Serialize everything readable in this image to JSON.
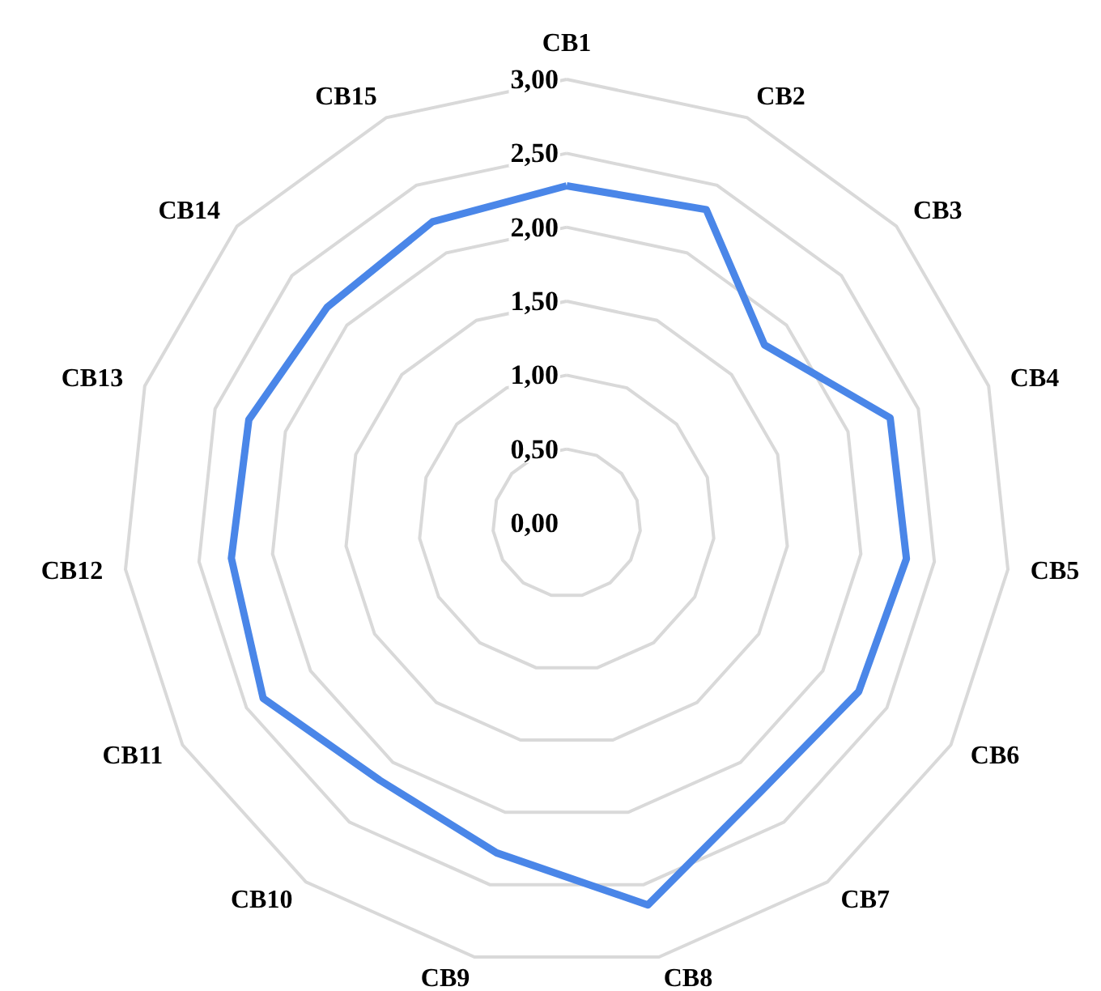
{
  "chart_data": {
    "type": "radar",
    "categories": [
      "CB1",
      "CB2",
      "CB3",
      "CB4",
      "CB5",
      "CB6",
      "CB7",
      "CB8",
      "CB9",
      "CB10",
      "CB11",
      "CB12",
      "CB13",
      "CB14",
      "CB15"
    ],
    "series": [
      {
        "color": "#4a86e8",
        "values": [
          2.28,
          2.32,
          1.8,
          2.3,
          2.31,
          2.28,
          2.24,
          2.64,
          2.28,
          2.15,
          2.37,
          2.28,
          2.26,
          2.18,
          2.23
        ]
      }
    ],
    "ylim": [
      0,
      3
    ],
    "yticks": [
      {
        "value": 0,
        "label": "0,00"
      },
      {
        "value": 0.5,
        "label": "0,50"
      },
      {
        "value": 1,
        "label": "1,00"
      },
      {
        "value": 1.5,
        "label": "1,50"
      },
      {
        "value": 2,
        "label": "2,00"
      },
      {
        "value": 2.5,
        "label": "2,50"
      },
      {
        "value": 3,
        "label": "3,00"
      }
    ],
    "grid": true,
    "marker": "none"
  }
}
